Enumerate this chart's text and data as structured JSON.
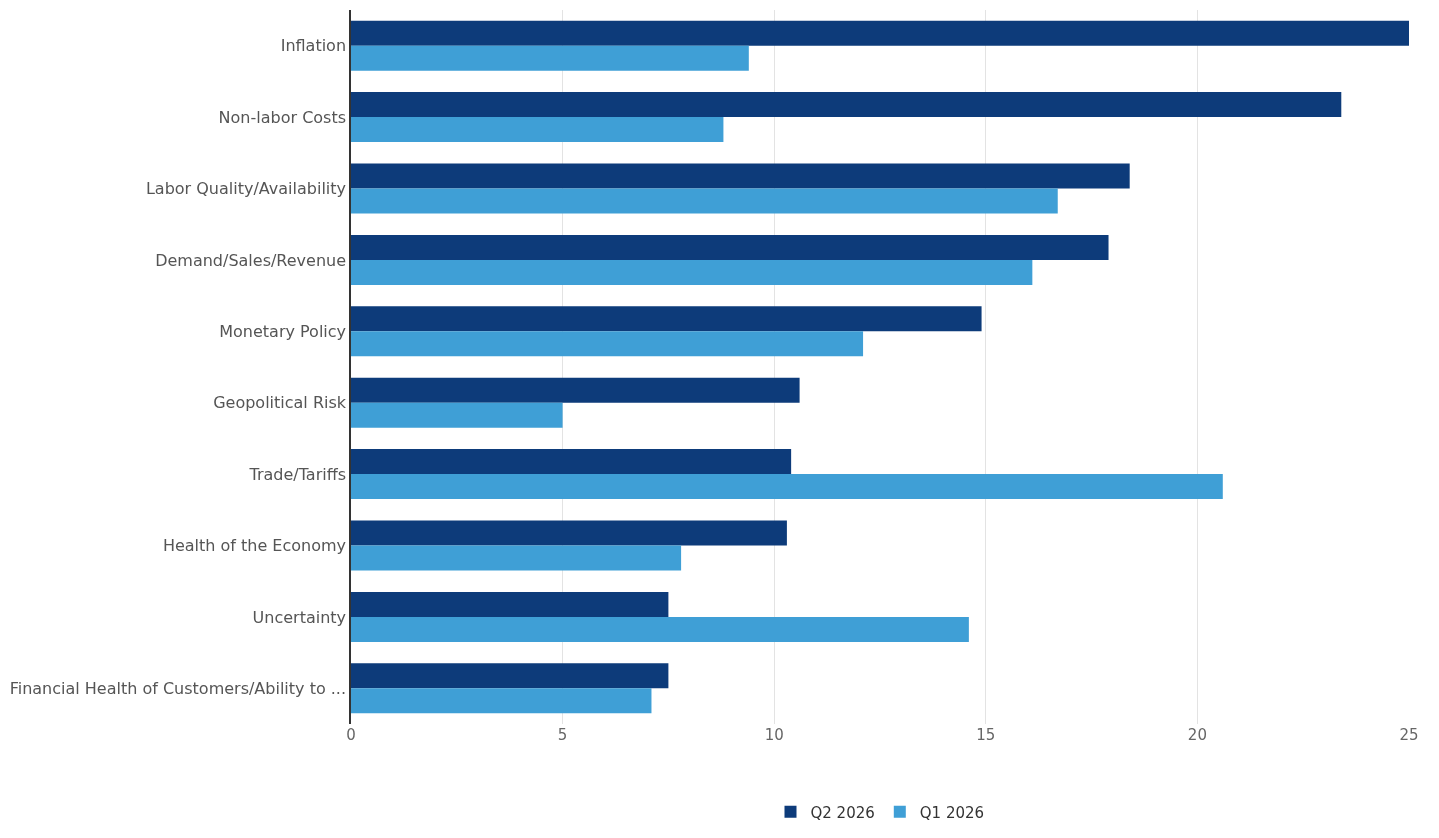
{
  "chart_data": {
    "type": "bar",
    "orientation": "horizontal",
    "categories": [
      "Inflation",
      "Non-labor Costs",
      "Labor Quality/Availability",
      "Demand/Sales/Revenue",
      "Monetary Policy",
      "Geopolitical Risk",
      "Trade/Tariffs",
      "Health of the Economy",
      "Uncertainty",
      "Financial Health of Customers/Ability to ..."
    ],
    "series": [
      {
        "name": "Q2 2026",
        "color": "#0d3b7a",
        "values": [
          25.0,
          23.4,
          18.4,
          17.9,
          14.9,
          10.6,
          10.4,
          10.3,
          7.5,
          7.5
        ]
      },
      {
        "name": "Q1 2026",
        "color": "#3f9fd6",
        "values": [
          9.4,
          8.8,
          16.7,
          16.1,
          12.1,
          5.0,
          20.6,
          7.8,
          14.6,
          7.1
        ]
      }
    ],
    "xlim": [
      0,
      25
    ],
    "xticks": [
      0,
      5,
      10,
      15,
      20,
      25
    ],
    "grid": "x",
    "legend": "bottom"
  }
}
